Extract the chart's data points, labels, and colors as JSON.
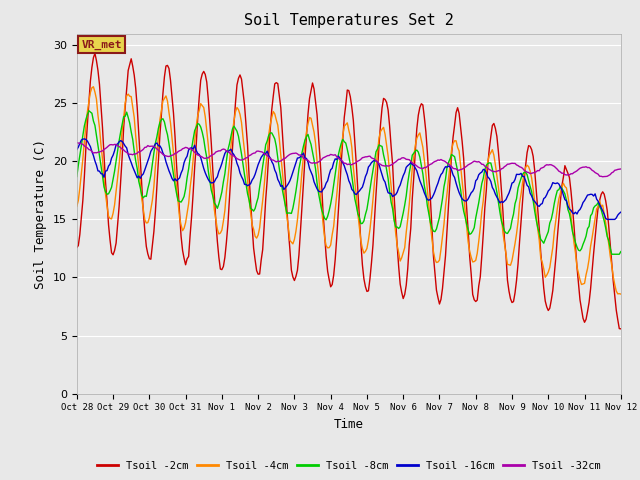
{
  "title": "Soil Temperatures Set 2",
  "xlabel": "Time",
  "ylabel": "Soil Temperature (C)",
  "ylim": [
    0,
    31
  ],
  "yticks": [
    0,
    5,
    10,
    15,
    20,
    25,
    30
  ],
  "plot_bg_color": "#e8e8e8",
  "annotation_text": "VR_met",
  "annotation_bg": "#e8d44d",
  "annotation_border": "#8b1a1a",
  "colors": {
    "Tsoil -2cm": "#cc0000",
    "Tsoil -4cm": "#ff8800",
    "Tsoil -8cm": "#00cc00",
    "Tsoil -16cm": "#0000cc",
    "Tsoil -32cm": "#aa00aa"
  },
  "x_tick_labels": [
    "Oct 28",
    "Oct 29",
    "Oct 30",
    "Oct 31",
    "Nov 1",
    "Nov 2",
    "Nov 3",
    "Nov 4",
    "Nov 5",
    "Nov 6",
    "Nov 7",
    "Nov 8",
    "Nov 9",
    "Nov 10",
    "Nov 11",
    "Nov 12"
  ],
  "x_tick_positions": [
    0,
    24,
    48,
    72,
    96,
    120,
    144,
    168,
    192,
    216,
    240,
    264,
    288,
    312,
    336,
    360
  ],
  "figsize": [
    6.4,
    4.8
  ],
  "dpi": 100
}
